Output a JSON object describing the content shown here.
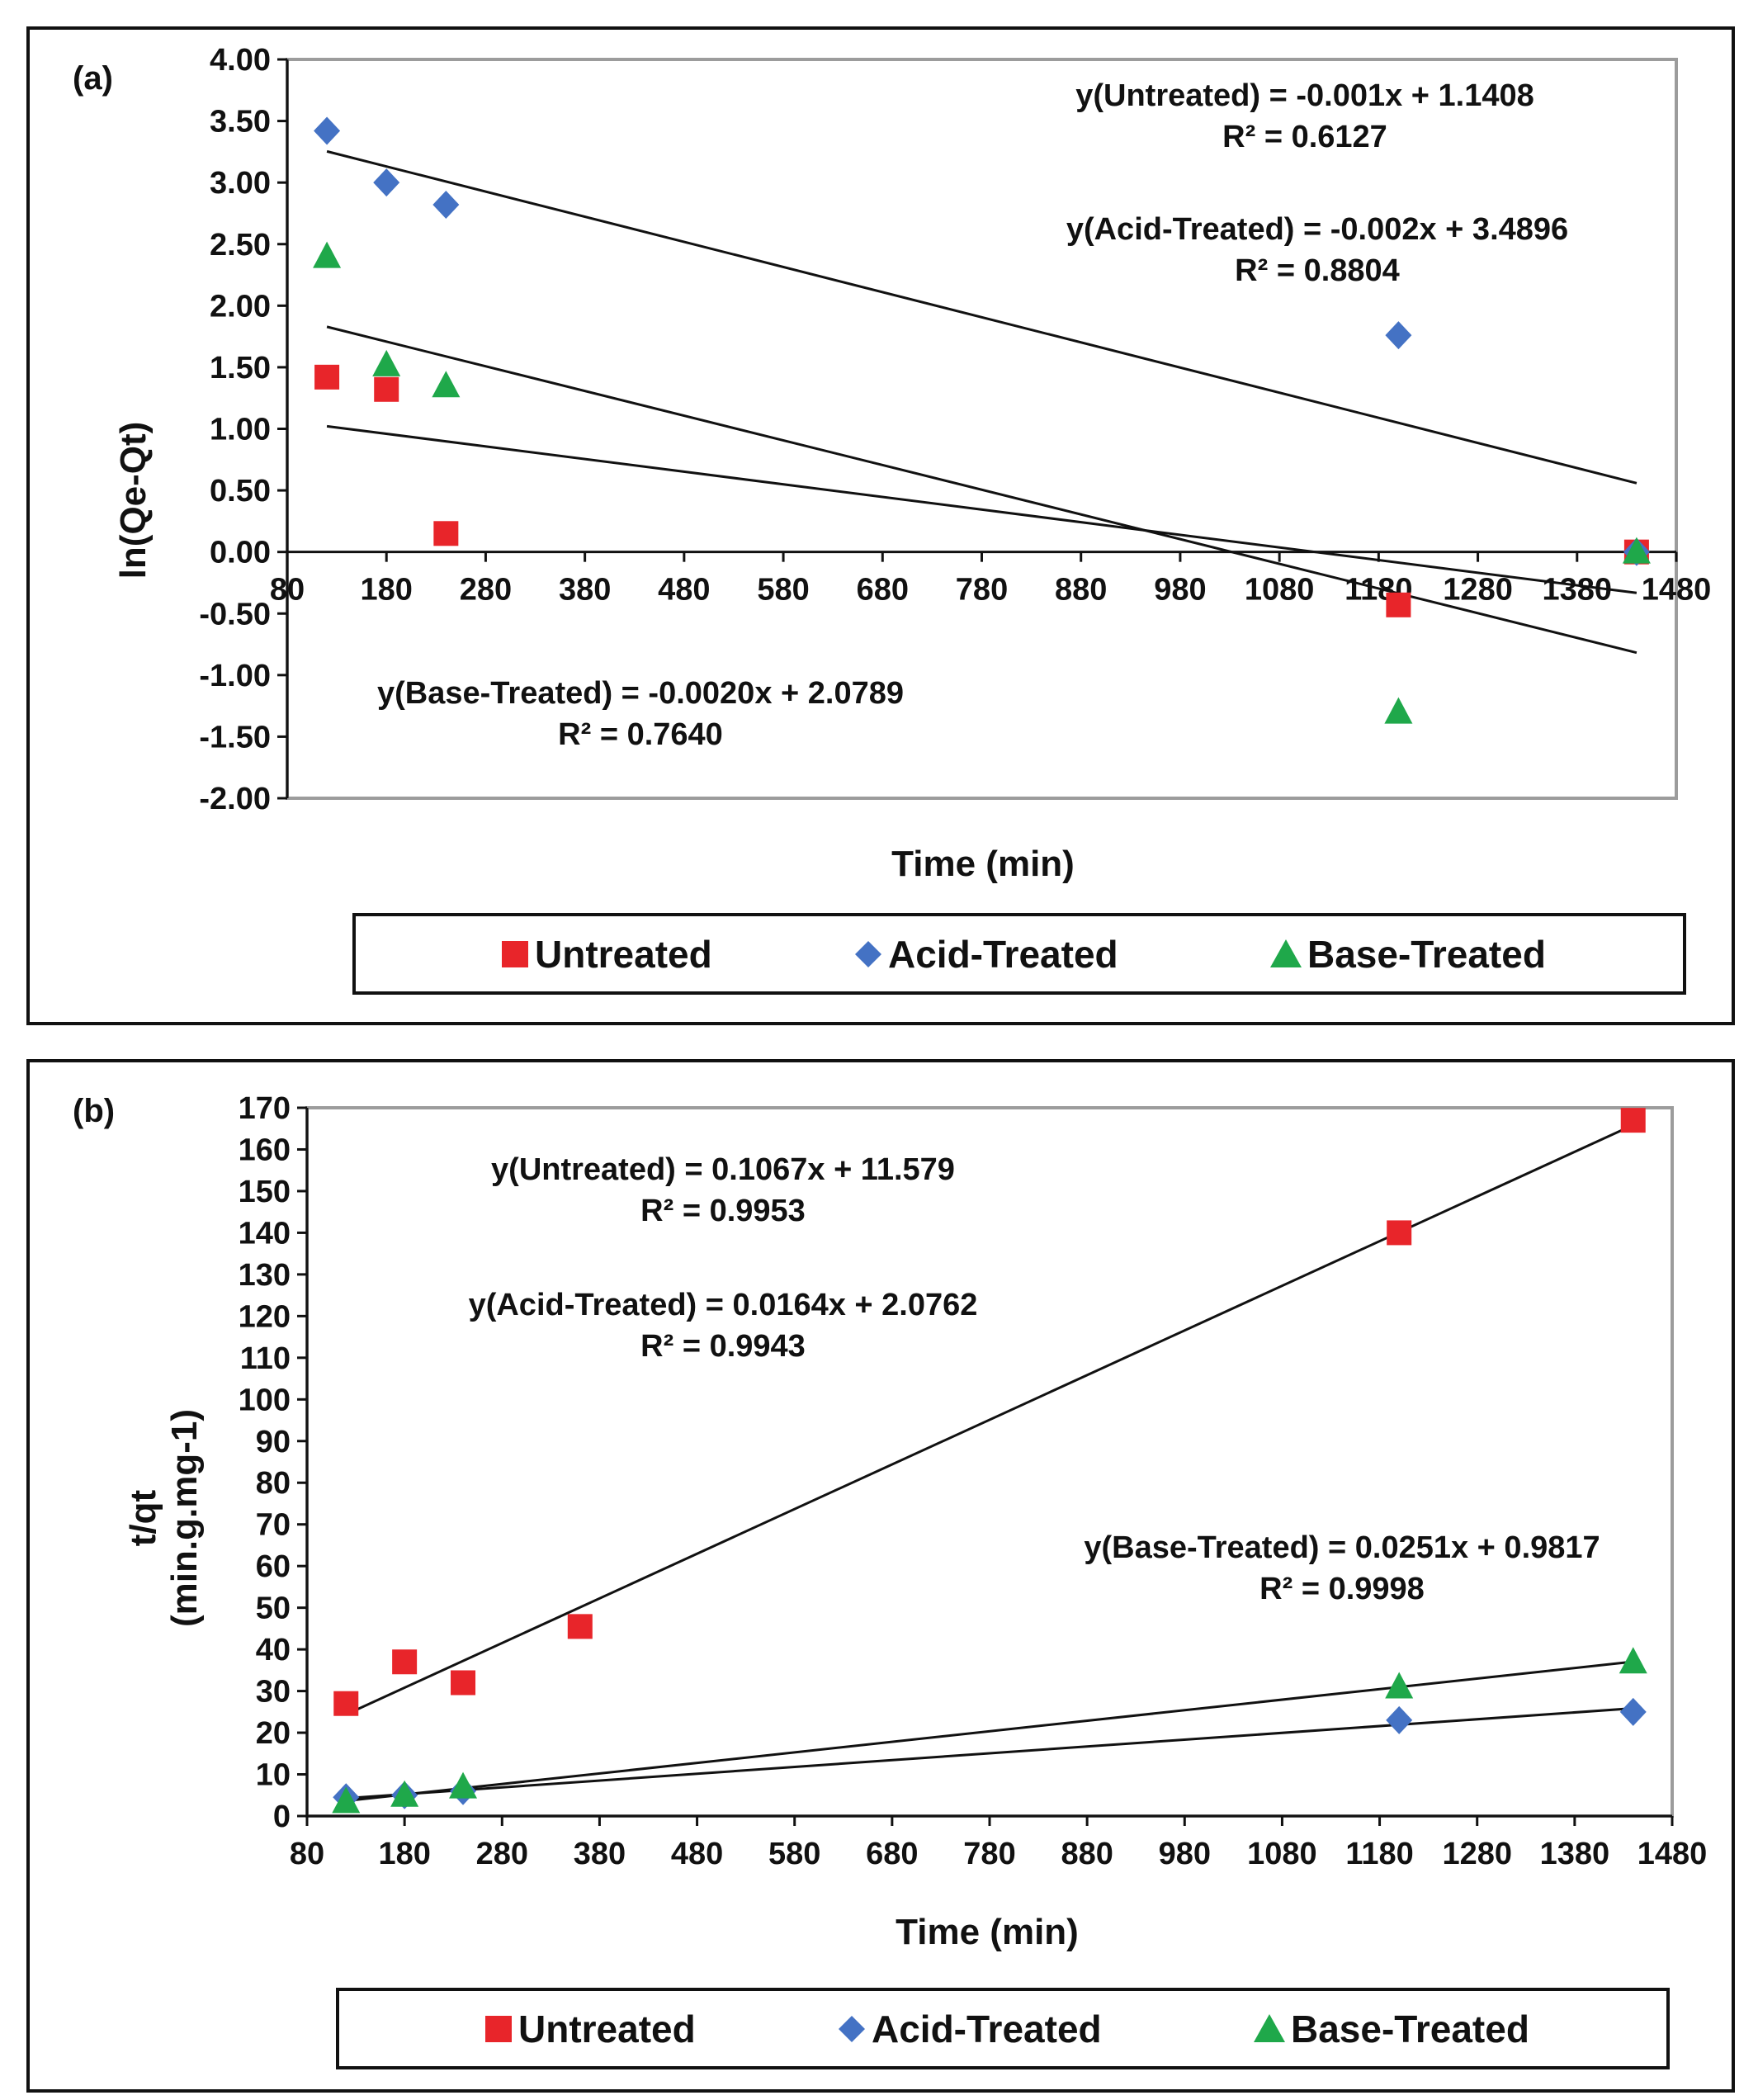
{
  "colors": {
    "untreated": "#e8252a",
    "acid": "#4472c4",
    "base": "#1fa84a",
    "line": "#111111",
    "frame": "#9c9c9c"
  },
  "legend": [
    "Untreated",
    "Acid-Treated",
    "Base-Treated"
  ],
  "chart_data": [
    {
      "type": "scatter",
      "panel_label": "(a)",
      "xlabel": "Time (min)",
      "ylabel": "ln(Qe-Qt)",
      "xlim": [
        80,
        1480
      ],
      "ylim": [
        -2,
        4
      ],
      "xticks": [
        80,
        180,
        280,
        380,
        480,
        580,
        680,
        780,
        880,
        980,
        1080,
        1180,
        1280,
        1380,
        1480
      ],
      "yticks": [
        "4.00",
        "3.50",
        "3.00",
        "2.50",
        "2.00",
        "1.50",
        "1.00",
        "0.50",
        "0.00",
        "-0.50",
        "-1.00",
        "-1.50",
        "-2.00"
      ],
      "legend_placement": "bottom",
      "series": [
        {
          "name": "Untreated",
          "x": [
            120,
            180,
            240,
            1200,
            1440
          ],
          "y": [
            1.42,
            1.32,
            0.15,
            -0.43,
            0.0
          ]
        },
        {
          "name": "Acid-Treated",
          "x": [
            120,
            180,
            240,
            1200,
            1440
          ],
          "y": [
            3.42,
            3.0,
            2.82,
            1.76,
            0.0
          ]
        },
        {
          "name": "Base-Treated",
          "x": [
            120,
            180,
            240,
            1200,
            1440
          ],
          "y": [
            2.4,
            1.52,
            1.35,
            -1.3,
            0.0
          ]
        }
      ],
      "annotations": [
        {
          "text": "y(Untreated) = -0.001x + 1.1408"
        },
        {
          "text": "R² = 0.6127"
        },
        {
          "text": "y(Acid-Treated) = -0.002x + 3.4896"
        },
        {
          "text": "R² = 0.8804"
        },
        {
          "text": "y(Base-Treated) = -0.0020x + 2.0789"
        },
        {
          "text": "R² = 0.7640"
        }
      ]
    },
    {
      "type": "scatter",
      "panel_label": "(b)",
      "xlabel": "Time (min)",
      "ylabel": [
        "t/qt",
        "(min.g.mg-1)"
      ],
      "xlim": [
        80,
        1480
      ],
      "ylim": [
        0,
        170
      ],
      "xticks": [
        80,
        180,
        280,
        380,
        480,
        580,
        680,
        780,
        880,
        980,
        1080,
        1180,
        1280,
        1380,
        1480
      ],
      "yticks": [
        "170",
        "160",
        "150",
        "140",
        "130",
        "120",
        "110",
        "100",
        "90",
        "80",
        "70",
        "60",
        "50",
        "40",
        "30",
        "20",
        "10",
        "0"
      ],
      "legend_placement": "bottom",
      "series": [
        {
          "name": "Untreated",
          "x": [
            120,
            180,
            240,
            360,
            1200,
            1440
          ],
          "y": [
            27,
            37,
            32,
            45.5,
            140,
            167
          ]
        },
        {
          "name": "Acid-Treated",
          "x": [
            120,
            180,
            240,
            1200,
            1440
          ],
          "y": [
            4.5,
            5,
            6,
            23,
            25
          ]
        },
        {
          "name": "Base-Treated",
          "x": [
            120,
            180,
            240,
            1200,
            1440
          ],
          "y": [
            3.5,
            5,
            7,
            31,
            37
          ]
        }
      ],
      "annotations": [
        {
          "text": "y(Untreated) = 0.1067x + 11.579"
        },
        {
          "text": "R² = 0.9953"
        },
        {
          "text": "y(Acid-Treated) = 0.0164x + 2.0762"
        },
        {
          "text": "R² = 0.9943"
        },
        {
          "text": "y(Base-Treated) = 0.0251x + 0.9817"
        },
        {
          "text": "R² = 0.9998"
        }
      ]
    }
  ]
}
